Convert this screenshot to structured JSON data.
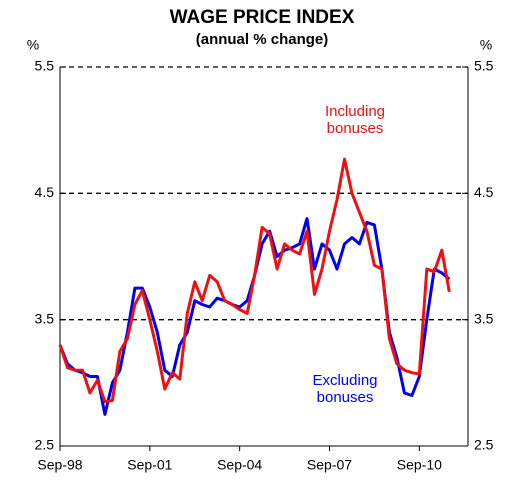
{
  "chart_data": {
    "type": "line",
    "title": "WAGE PRICE INDEX",
    "subtitle": "(annual % change)",
    "y_label": "%",
    "y2_label": "%",
    "categories": [
      "Sep-98",
      null,
      null,
      null,
      null,
      null,
      null,
      null,
      null,
      null,
      null,
      null,
      "Sep-01",
      null,
      null,
      null,
      null,
      null,
      null,
      null,
      null,
      null,
      null,
      null,
      "Sep-04",
      null,
      null,
      null,
      null,
      null,
      null,
      null,
      null,
      null,
      null,
      null,
      "Sep-07",
      null,
      null,
      null,
      null,
      null,
      null,
      null,
      null,
      null,
      null,
      null,
      "Sep-10",
      null,
      null,
      null,
      null
    ],
    "series": [
      {
        "name": "Including bonuses",
        "color": "#ee1111",
        "values": [
          3.3,
          3.12,
          3.1,
          3.1,
          2.92,
          3.02,
          2.85,
          2.86,
          3.25,
          3.35,
          3.62,
          3.73,
          3.5,
          3.25,
          2.95,
          3.08,
          3.03,
          3.55,
          3.8,
          3.65,
          3.85,
          3.8,
          3.65,
          3.62,
          3.58,
          3.55,
          3.85,
          4.23,
          4.18,
          3.9,
          4.1,
          4.05,
          4.02,
          4.2,
          3.7,
          3.9,
          4.2,
          4.45,
          4.77,
          4.5,
          4.35,
          4.2,
          3.93,
          3.9,
          3.35,
          3.15,
          3.1,
          3.08,
          3.07,
          3.9,
          3.88,
          4.05,
          3.72
        ]
      },
      {
        "name": "Excluding bonuses",
        "color": "#0000ee",
        "values": [
          3.3,
          3.15,
          3.1,
          3.08,
          3.05,
          3.05,
          2.75,
          3.0,
          3.1,
          3.4,
          3.75,
          3.75,
          3.6,
          3.4,
          3.1,
          3.05,
          3.3,
          3.4,
          3.65,
          3.62,
          3.6,
          3.67,
          3.65,
          3.62,
          3.6,
          3.65,
          3.85,
          4.1,
          4.2,
          4.0,
          4.05,
          4.07,
          4.1,
          4.3,
          3.9,
          4.1,
          4.05,
          3.9,
          4.1,
          4.15,
          4.1,
          4.27,
          4.25,
          3.9,
          3.4,
          3.2,
          2.92,
          2.9,
          3.05,
          3.5,
          3.9,
          3.87,
          3.82
        ]
      }
    ],
    "ylim": [
      2.5,
      5.5
    ],
    "yticks": [
      2.5,
      3.5,
      4.5,
      5.5
    ],
    "y2lim": [
      2.5,
      5.5
    ],
    "y2ticks": [
      2.5,
      3.5,
      4.5,
      5.5
    ],
    "grid": true
  }
}
